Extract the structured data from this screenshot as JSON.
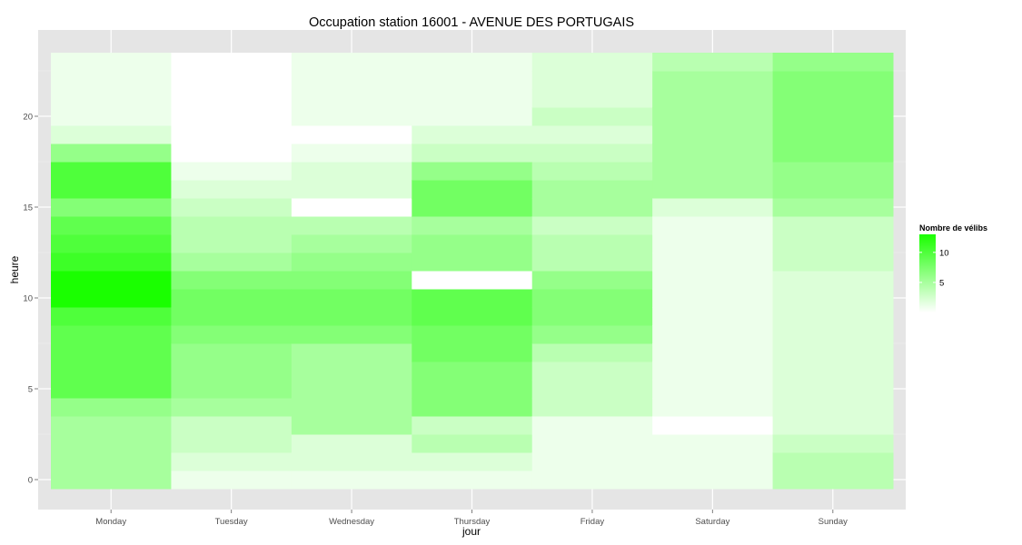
{
  "chart_data": {
    "type": "heatmap",
    "title": "Occupation station 16001 - AVENUE DES PORTUGAIS",
    "xlabel": "jour",
    "ylabel": "heure",
    "x_categories": [
      "Monday",
      "Tuesday",
      "Wednesday",
      "Thursday",
      "Friday",
      "Saturday",
      "Sunday"
    ],
    "y_range": [
      0,
      23
    ],
    "y_ticks": [
      0,
      5,
      10,
      15,
      20
    ],
    "legend": {
      "title": "Nombre de vélibs",
      "ticks": [
        5,
        10
      ],
      "range": [
        0,
        13
      ],
      "low_color": "#ffffff",
      "high_color": "#1aff00",
      "placement": "right"
    },
    "grid": true,
    "values": {
      "Monday": [
        5,
        5,
        5,
        5,
        6,
        9,
        9,
        9,
        9,
        10,
        13,
        13,
        11,
        10,
        9,
        7,
        10,
        10,
        6,
        2,
        1,
        1,
        1,
        1
      ],
      "Tuesday": [
        1,
        2,
        3,
        3,
        5,
        6,
        6,
        6,
        7,
        8,
        8,
        7,
        5,
        4,
        4,
        3,
        2,
        1,
        0,
        0,
        0,
        0,
        0,
        0
      ],
      "Wednesday": [
        1,
        2,
        2,
        5,
        5,
        5,
        5,
        5,
        7,
        8,
        8,
        7,
        6,
        5,
        4,
        0,
        2,
        2,
        1,
        0,
        1,
        1,
        1,
        1
      ],
      "Thursday": [
        1,
        2,
        4,
        3,
        7,
        7,
        7,
        8,
        8,
        9,
        9,
        0,
        6,
        6,
        5,
        8,
        8,
        6,
        3,
        2,
        1,
        1,
        1,
        1
      ],
      "Friday": [
        1,
        1,
        1,
        1,
        3,
        3,
        3,
        4,
        6,
        7,
        7,
        6,
        4,
        4,
        3,
        5,
        5,
        4,
        3,
        2,
        3,
        2,
        2,
        2
      ],
      "Saturday": [
        1,
        1,
        1,
        0,
        1,
        1,
        1,
        1,
        1,
        1,
        1,
        1,
        1,
        1,
        1,
        2,
        5,
        5,
        5,
        5,
        5,
        5,
        5,
        4
      ],
      "Sunday": [
        4,
        4,
        3,
        2,
        2,
        2,
        2,
        2,
        2,
        2,
        2,
        2,
        3,
        3,
        3,
        5,
        6,
        6,
        7,
        7,
        7,
        7,
        7,
        6
      ]
    }
  }
}
